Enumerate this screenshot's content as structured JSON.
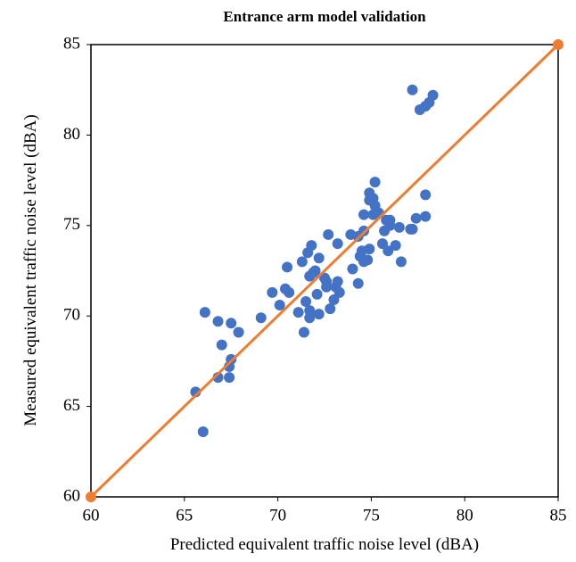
{
  "chart_data": {
    "type": "scatter",
    "title": "Entrance arm model validation",
    "x_label": "Predicted equivalent traffic noise level (dBA)",
    "y_label": "Measured equivalent traffic noise level (dBA)",
    "xlim": [
      60,
      85
    ],
    "ylim": [
      60,
      85
    ],
    "xticks": [
      60,
      65,
      70,
      75,
      80,
      85
    ],
    "yticks": [
      60,
      65,
      70,
      75,
      80,
      85
    ],
    "grid": false,
    "series": [
      {
        "type": "scatter",
        "color": "#4472c4",
        "x": [
          77.2,
          78.3,
          78.1,
          77.9,
          77.6,
          75.2,
          74.9,
          75.1,
          74.9,
          75.2,
          75.4,
          77.9,
          75.1,
          74.6,
          76.0,
          75.8,
          77.9,
          77.4,
          76.0,
          75.7,
          74.6,
          73.9,
          74.3,
          76.5,
          73.2,
          77.1,
          77.2,
          75.6,
          76.3,
          75.9,
          74.9,
          74.5,
          74.4,
          74.8,
          74.6,
          76.6,
          74.0,
          74.3,
          71.8,
          72.7,
          71.6,
          71.3,
          70.5,
          72.2,
          71.9,
          72.0,
          71.7,
          72.5,
          72.6,
          73.2,
          72.6,
          73.1,
          72.1,
          73.3,
          73.0,
          72.8,
          71.5,
          70.6,
          70.4,
          69.7,
          70.1,
          71.1,
          71.7,
          71.7,
          72.2,
          71.4,
          69.1,
          66.1,
          66.8,
          67.5,
          67.9,
          67.0,
          67.5,
          67.4,
          66.8,
          67.4,
          65.6,
          66.0
        ],
        "y": [
          82.5,
          82.2,
          81.8,
          81.6,
          81.4,
          77.4,
          76.8,
          76.5,
          76.4,
          76.1,
          75.7,
          76.7,
          75.6,
          75.6,
          75.3,
          75.3,
          75.5,
          75.4,
          75.0,
          74.7,
          74.7,
          74.5,
          74.4,
          74.9,
          74.0,
          74.8,
          74.8,
          74.0,
          73.9,
          73.6,
          73.7,
          73.6,
          73.3,
          73.1,
          73.0,
          73.0,
          72.6,
          71.8,
          73.9,
          74.5,
          73.5,
          73.0,
          72.7,
          73.2,
          72.4,
          72.5,
          72.2,
          72.1,
          71.9,
          71.9,
          71.6,
          71.6,
          71.2,
          71.3,
          70.9,
          70.4,
          70.8,
          71.3,
          71.5,
          71.3,
          70.6,
          70.2,
          70.3,
          69.9,
          70.1,
          69.1,
          69.9,
          70.2,
          69.7,
          69.6,
          69.1,
          68.4,
          67.6,
          67.2,
          66.6,
          66.6,
          65.8,
          63.6
        ]
      },
      {
        "type": "line",
        "color": "#ed7d31",
        "x": [
          60,
          85
        ],
        "y": [
          60,
          85
        ]
      }
    ]
  }
}
